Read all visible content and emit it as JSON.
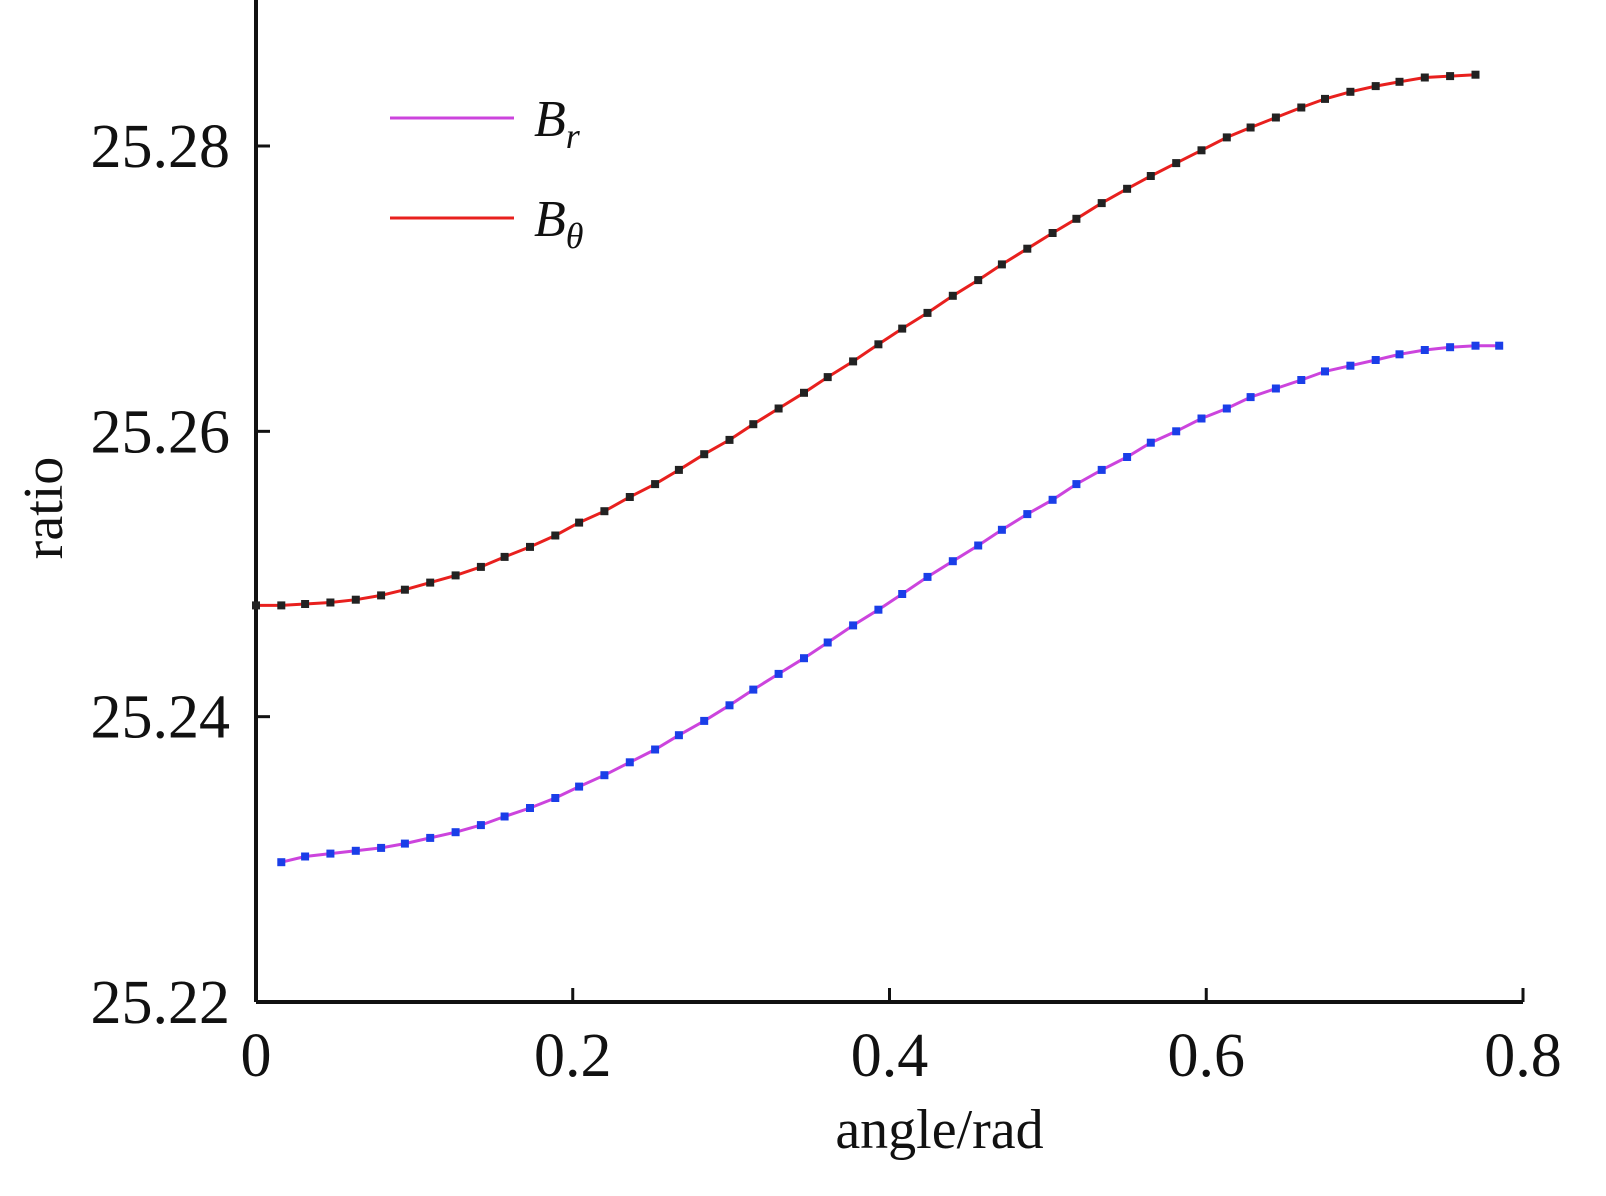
{
  "chart_data": {
    "type": "line",
    "title": "",
    "xlabel": "angle/rad",
    "ylabel": "ratio",
    "xlim": [
      0,
      0.8
    ],
    "ylim": [
      25.22,
      25.29
    ],
    "xticks": [
      0,
      0.2,
      0.4,
      0.6,
      0.8
    ],
    "xtick_labels": [
      "0",
      "0.2",
      "0.4",
      "0.6",
      "0.8"
    ],
    "yticks": [
      25.22,
      25.24,
      25.26,
      25.28
    ],
    "ytick_labels": [
      "25.22",
      "25.24",
      "25.26",
      "25.28"
    ],
    "grid": false,
    "legend_position": "top-left",
    "series": [
      {
        "name": "Br",
        "legend_main": "B",
        "legend_sub": "r",
        "color": "#cc44dd",
        "marker_color": "#1a3ee8",
        "x": [
          0.016,
          0.031,
          0.047,
          0.063,
          0.079,
          0.094,
          0.11,
          0.126,
          0.142,
          0.157,
          0.173,
          0.189,
          0.204,
          0.22,
          0.236,
          0.252,
          0.267,
          0.283,
          0.299,
          0.314,
          0.33,
          0.346,
          0.361,
          0.377,
          0.393,
          0.408,
          0.424,
          0.44,
          0.456,
          0.471,
          0.487,
          0.503,
          0.518,
          0.534,
          0.55,
          0.565,
          0.581,
          0.597,
          0.613,
          0.628,
          0.644,
          0.66,
          0.675,
          0.691,
          0.707,
          0.722,
          0.738,
          0.754,
          0.77,
          0.785
        ],
        "values": [
          25.2298,
          25.2302,
          25.2304,
          25.2306,
          25.2308,
          25.2311,
          25.2315,
          25.2319,
          25.2324,
          25.233,
          25.2336,
          25.2343,
          25.2351,
          25.2359,
          25.2368,
          25.2377,
          25.2387,
          25.2397,
          25.2408,
          25.2419,
          25.243,
          25.2441,
          25.2452,
          25.2464,
          25.2475,
          25.2486,
          25.2498,
          25.2509,
          25.252,
          25.2531,
          25.2542,
          25.2552,
          25.2563,
          25.2573,
          25.2582,
          25.2592,
          25.26,
          25.2609,
          25.2616,
          25.2624,
          25.263,
          25.2636,
          25.2642,
          25.2646,
          25.265,
          25.2654,
          25.2657,
          25.2659,
          25.266,
          25.266
        ]
      },
      {
        "name": "Bθ",
        "legend_main": "B",
        "legend_sub": "θ",
        "color": "#e8201e",
        "marker_color": "#222222",
        "x": [
          0.0,
          0.016,
          0.031,
          0.047,
          0.063,
          0.079,
          0.094,
          0.11,
          0.126,
          0.142,
          0.157,
          0.173,
          0.189,
          0.204,
          0.22,
          0.236,
          0.252,
          0.267,
          0.283,
          0.299,
          0.314,
          0.33,
          0.346,
          0.361,
          0.377,
          0.393,
          0.408,
          0.424,
          0.44,
          0.456,
          0.471,
          0.487,
          0.503,
          0.518,
          0.534,
          0.55,
          0.565,
          0.581,
          0.597,
          0.613,
          0.628,
          0.644,
          0.66,
          0.675,
          0.691,
          0.707,
          0.722,
          0.738,
          0.754,
          0.77
        ],
        "values": [
          25.2478,
          25.2478,
          25.2479,
          25.248,
          25.2482,
          25.2485,
          25.2489,
          25.2494,
          25.2499,
          25.2505,
          25.2512,
          25.2519,
          25.2527,
          25.2536,
          25.2544,
          25.2554,
          25.2563,
          25.2573,
          25.2584,
          25.2594,
          25.2605,
          25.2616,
          25.2627,
          25.2638,
          25.2649,
          25.2661,
          25.2672,
          25.2683,
          25.2695,
          25.2706,
          25.2717,
          25.2728,
          25.2739,
          25.2749,
          25.276,
          25.277,
          25.2779,
          25.2788,
          25.2797,
          25.2806,
          25.2813,
          25.282,
          25.2827,
          25.2833,
          25.2838,
          25.2842,
          25.2845,
          25.2848,
          25.2849,
          25.285
        ]
      }
    ]
  }
}
